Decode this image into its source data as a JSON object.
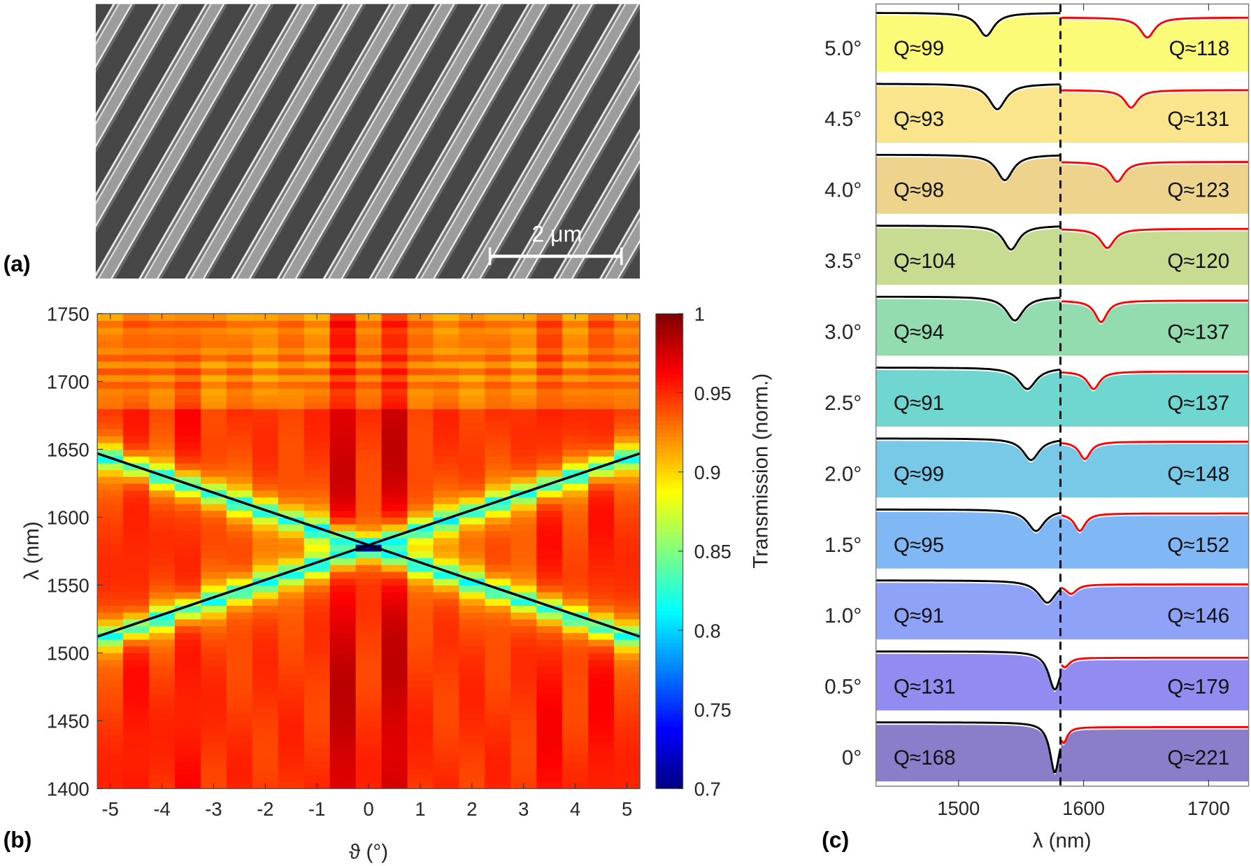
{
  "chart_data": [
    {
      "type": "image",
      "panel_label": "(a)",
      "scale_bar": "2 μm"
    },
    {
      "type": "heatmap",
      "panel_label": "(b)",
      "xlabel": "ϑ (°)",
      "ylabel": "λ (nm)",
      "xlim": [
        -5.25,
        5.25
      ],
      "ylim": [
        1400,
        1750
      ],
      "x_values": [
        -5,
        -4.5,
        -4,
        -3.5,
        -3,
        -2.5,
        -2,
        -1.5,
        -1,
        -0.5,
        0,
        0.5,
        1,
        1.5,
        2,
        2.5,
        3,
        3.5,
        4,
        4.5,
        5
      ],
      "xticks": [
        "-5",
        "-4",
        "-3",
        "-2",
        "-1",
        "0",
        "1",
        "2",
        "3",
        "4",
        "5"
      ],
      "yticks": [
        "1400",
        "1450",
        "1500",
        "1550",
        "1600",
        "1650",
        "1700",
        "1750"
      ],
      "colorbar": {
        "label": "Transmission (norm.)",
        "colormap": "jet",
        "range": [
          0.7,
          1
        ],
        "ticks": [
          "0.7",
          "0.75",
          "0.8",
          "0.85",
          "0.9",
          "0.95",
          "1"
        ]
      },
      "fit_lines": [
        {
          "from": [
            -5.25,
            1647
          ],
          "to": [
            5.25,
            1512
          ],
          "color": "#000000"
        },
        {
          "from": [
            -5.25,
            1512
          ],
          "to": [
            5.25,
            1647
          ],
          "color": "#000000"
        }
      ]
    },
    {
      "type": "line",
      "panel_label": "(c)",
      "xlabel": "λ (nm)",
      "xlim": [
        1434,
        1732
      ],
      "xticks": [
        "1500",
        "1600",
        "1700"
      ],
      "divider_wavelength": 1581.5,
      "left_fit_color": "#000000",
      "right_fit_color": "#ff0000",
      "series": [
        {
          "angle": "5.0°",
          "color": "#fbfb78",
          "q_left": "Q≈99",
          "q_right": "Q≈118",
          "q_left_value": 99,
          "q_right_value": 118,
          "dip_left": 1522,
          "dip_right": 1651
        },
        {
          "angle": "4.5°",
          "color": "#fbe58c",
          "q_left": "Q≈93",
          "q_right": "Q≈131",
          "q_left_value": 93,
          "q_right_value": 131,
          "dip_left": 1531,
          "dip_right": 1638
        },
        {
          "angle": "4.0°",
          "color": "#eed38c",
          "q_left": "Q≈98",
          "q_right": "Q≈123",
          "q_left_value": 98,
          "q_right_value": 123,
          "dip_left": 1537,
          "dip_right": 1627
        },
        {
          "angle": "3.5°",
          "color": "#c7dc90",
          "q_left": "Q≈104",
          "q_right": "Q≈120",
          "q_left_value": 104,
          "q_right_value": 120,
          "dip_left": 1542,
          "dip_right": 1619
        },
        {
          "angle": "3.0°",
          "color": "#92dcb0",
          "q_left": "Q≈94",
          "q_right": "Q≈137",
          "q_left_value": 94,
          "q_right_value": 137,
          "dip_left": 1545,
          "dip_right": 1614
        },
        {
          "angle": "2.5°",
          "color": "#6fd6d0",
          "q_left": "Q≈91",
          "q_right": "Q≈137",
          "q_left_value": 91,
          "q_right_value": 137,
          "dip_left": 1555,
          "dip_right": 1608
        },
        {
          "angle": "2.0°",
          "color": "#78c8e8",
          "q_left": "Q≈99",
          "q_right": "Q≈148",
          "q_left_value": 99,
          "q_right_value": 148,
          "dip_left": 1558,
          "dip_right": 1601
        },
        {
          "angle": "1.5°",
          "color": "#80b8f6",
          "q_left": "Q≈95",
          "q_right": "Q≈152",
          "q_left_value": 95,
          "q_right_value": 152,
          "dip_left": 1562,
          "dip_right": 1597
        },
        {
          "angle": "1.0°",
          "color": "#8ea2f8",
          "q_left": "Q≈91",
          "q_right": "Q≈146",
          "q_left_value": 91,
          "q_right_value": 146,
          "dip_left": 1571,
          "dip_right": 1590
        },
        {
          "angle": "0.5°",
          "color": "#928cf0",
          "q_left": "Q≈131",
          "q_right": "Q≈179",
          "q_left_value": 131,
          "q_right_value": 179,
          "dip_left": 1577,
          "dip_right": 1585
        },
        {
          "angle": "0°",
          "color": "#8a7ecb",
          "q_left": "Q≈168",
          "q_right": "Q≈221",
          "q_left_value": 168,
          "q_right_value": 221,
          "dip_left": 1577,
          "dip_right": 1584
        }
      ]
    }
  ]
}
